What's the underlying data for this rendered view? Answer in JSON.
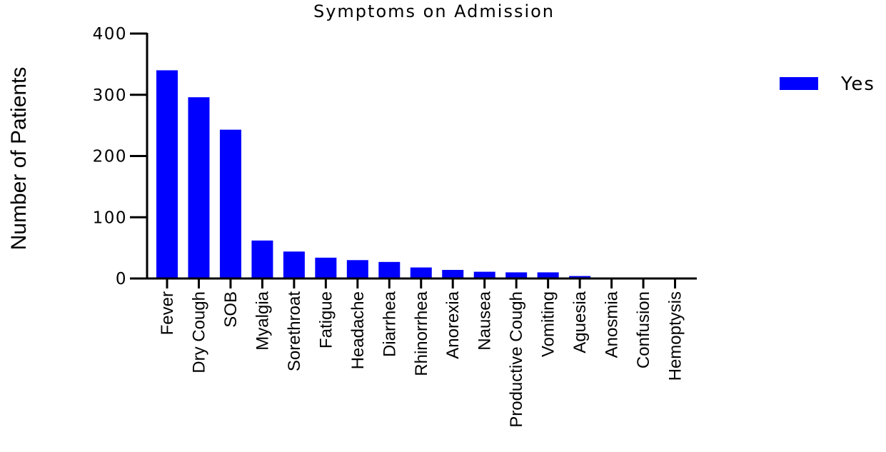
{
  "chart_data": {
    "type": "bar",
    "title": "Symptoms on Admission",
    "xlabel": "",
    "ylabel": "Number of Patients",
    "ylim": [
      0,
      400
    ],
    "yticks": [
      0,
      100,
      200,
      300,
      400
    ],
    "categories": [
      "Fever",
      "Dry Cough",
      "SOB",
      "Myalgia",
      "Sorethroat",
      "Fatigue",
      "Headache",
      "Diarrhea",
      "Rhinorrhea",
      "Anorexia",
      "Nausea",
      "Productive Cough",
      "Vomiting",
      "Aguesia",
      "Anosmia",
      "Confusion",
      "Hemoptysis"
    ],
    "series": [
      {
        "name": "Yes",
        "color": "#0000ff",
        "values": [
          340,
          296,
          243,
          62,
          44,
          34,
          30,
          27,
          18,
          14,
          11,
          10,
          10,
          4,
          1,
          1,
          1
        ]
      }
    ],
    "legend_position": "top-right",
    "grid": false
  }
}
